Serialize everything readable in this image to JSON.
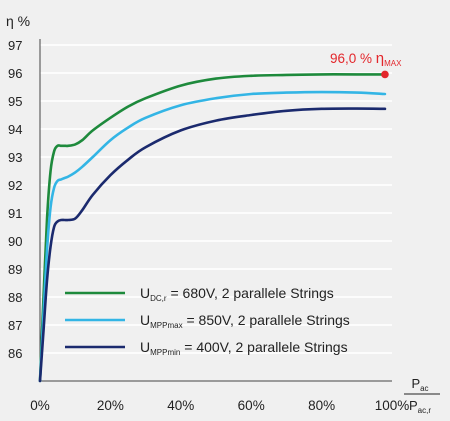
{
  "chart_data": {
    "type": "line",
    "ylabel": "η %",
    "xlabel_numerator_base": "P",
    "xlabel_numerator_sub": "ac",
    "xlabel_denominator_base": "P",
    "xlabel_denominator_sub": "ac,r",
    "xlim": [
      0,
      100
    ],
    "ylim": [
      85,
      97
    ],
    "xticks": [
      "0%",
      "20%",
      "40%",
      "60%",
      "80%",
      "100%"
    ],
    "xtick_values": [
      0,
      20,
      40,
      60,
      80,
      100
    ],
    "yticks": [
      "86",
      "87",
      "88",
      "89",
      "90",
      "91",
      "92",
      "93",
      "94",
      "95",
      "96",
      "97"
    ],
    "ytick_values": [
      86,
      87,
      88,
      89,
      90,
      91,
      92,
      93,
      94,
      95,
      96,
      97
    ],
    "grid": "horizontal",
    "legend_position": "bottom-right",
    "series": [
      {
        "name_base": "U",
        "name_sub": "DC,r",
        "name_rest": " = 680V, 2 parallele Strings",
        "color": "#1e8a3c",
        "x": [
          0,
          1,
          2,
          3,
          4,
          5,
          6,
          7,
          8,
          10,
          12,
          15,
          20,
          25,
          30,
          40,
          50,
          60,
          70,
          80,
          90,
          98
        ],
        "y": [
          85.0,
          88.0,
          90.8,
          92.5,
          93.2,
          93.4,
          93.4,
          93.4,
          93.4,
          93.45,
          93.6,
          93.95,
          94.4,
          94.8,
          95.1,
          95.55,
          95.8,
          95.9,
          95.93,
          95.95,
          95.95,
          95.95
        ]
      },
      {
        "name_base": "U",
        "name_sub": "MPPmax",
        "name_rest": " = 850V, 2 parallele Strings",
        "color": "#33b5e5",
        "x": [
          0,
          1,
          2,
          3,
          4,
          5,
          6,
          7,
          8,
          10,
          12,
          15,
          20,
          25,
          30,
          40,
          50,
          60,
          70,
          80,
          90,
          98
        ],
        "y": [
          85.0,
          87.4,
          89.7,
          91.2,
          91.9,
          92.15,
          92.2,
          92.25,
          92.3,
          92.45,
          92.65,
          93.0,
          93.6,
          94.05,
          94.4,
          94.85,
          95.1,
          95.25,
          95.3,
          95.32,
          95.3,
          95.25
        ]
      },
      {
        "name_base": "U",
        "name_sub": "MPPmin",
        "name_rest": " = 400V, 2 parallele Strings",
        "color": "#1b2a6e",
        "x": [
          0,
          1,
          2,
          3,
          4,
          5,
          6,
          7,
          8,
          10,
          12,
          15,
          20,
          25,
          30,
          40,
          50,
          60,
          70,
          80,
          90,
          98
        ],
        "y": [
          85.0,
          86.8,
          88.6,
          89.8,
          90.5,
          90.7,
          90.75,
          90.75,
          90.75,
          90.8,
          91.1,
          91.65,
          92.35,
          92.9,
          93.35,
          93.95,
          94.3,
          94.5,
          94.65,
          94.72,
          94.73,
          94.72
        ]
      }
    ],
    "annotation": {
      "value_text": "96,0 % ",
      "symbol": "η",
      "sub": "MAX",
      "point": [
        98,
        95.95
      ],
      "color": "#e3262b"
    }
  }
}
